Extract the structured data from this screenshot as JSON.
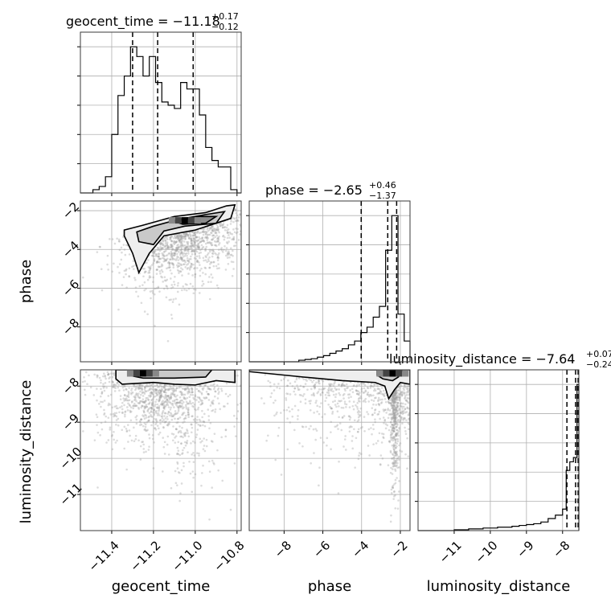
{
  "chart_data": {
    "type": "corner",
    "parameters": [
      "geocent_time",
      "phase",
      "luminosity_distance"
    ],
    "diagonal_titles": [
      {
        "param": "geocent_time",
        "label": "geocent_time = ",
        "median": "−11.18",
        "upper": "+0.17",
        "lower": "−0.12"
      },
      {
        "param": "phase",
        "label": "phase = ",
        "median": "−2.65",
        "upper": "+0.46",
        "lower": "−1.37"
      },
      {
        "param": "luminosity_distance",
        "label": "luminosity_distance = ",
        "median": "−7.64",
        "upper": "+0.07",
        "lower": "−0.24"
      }
    ],
    "axes": {
      "geocent_time": {
        "range": [
          -11.55,
          -10.78
        ],
        "ticks": [
          -11.4,
          -11.2,
          -11.0,
          -10.8
        ],
        "tick_labels": [
          "−11.4",
          "−11.2",
          "−11.0",
          "−10.8"
        ]
      },
      "phase": {
        "range": [
          -9.8,
          -1.5
        ],
        "ticks": [
          -8,
          -6,
          -4,
          -2
        ],
        "tick_labels": [
          "−8",
          "−6",
          "−4",
          "−2"
        ]
      },
      "luminosity_distance": {
        "range": [
          -12.0,
          -7.55
        ],
        "ticks": [
          -11,
          -10,
          -9,
          -8
        ],
        "tick_labels": [
          "−11",
          "−10",
          "−9",
          "−8"
        ]
      }
    },
    "quantiles": {
      "geocent_time": [
        -11.3,
        -11.18,
        -11.01
      ],
      "phase": [
        -4.02,
        -2.65,
        -2.19
      ],
      "luminosity_distance": [
        -7.88,
        -7.64,
        -7.57
      ]
    },
    "hist_geocent_time": {
      "edges": [
        -11.55,
        -11.52,
        -11.49,
        -11.46,
        -11.43,
        -11.4,
        -11.37,
        -11.34,
        -11.31,
        -11.28,
        -11.25,
        -11.22,
        -11.19,
        -11.16,
        -11.13,
        -11.1,
        -11.07,
        -11.04,
        -11.01,
        -10.98,
        -10.95,
        -10.92,
        -10.89,
        -10.86,
        -10.83,
        -10.8,
        -10.78
      ],
      "counts": [
        0,
        0,
        5,
        10,
        25,
        90,
        150,
        180,
        225,
        210,
        180,
        210,
        170,
        140,
        135,
        130,
        170,
        160,
        160,
        120,
        70,
        50,
        40,
        40,
        5,
        0
      ]
    },
    "hist_phase": {
      "edges": [
        -9.8,
        -9.48,
        -9.16,
        -8.84,
        -8.52,
        -8.2,
        -7.88,
        -7.56,
        -7.24,
        -6.92,
        -6.6,
        -6.28,
        -5.96,
        -5.64,
        -5.32,
        -5.0,
        -4.68,
        -4.36,
        -4.04,
        -3.72,
        -3.4,
        -3.08,
        -2.76,
        -2.44,
        -2.12,
        -1.8,
        -1.5
      ],
      "counts": [
        0,
        0,
        0,
        0,
        0,
        0,
        0,
        0,
        2,
        3,
        4,
        6,
        8,
        11,
        14,
        17,
        22,
        27,
        38,
        45,
        58,
        72,
        145,
        190,
        62,
        27
      ]
    },
    "hist_luminosity_distance": {
      "edges": [
        -12.0,
        -11.8,
        -11.6,
        -11.4,
        -11.2,
        -11.0,
        -10.8,
        -10.6,
        -10.4,
        -10.2,
        -10.0,
        -9.8,
        -9.6,
        -9.4,
        -9.2,
        -9.0,
        -8.8,
        -8.6,
        -8.4,
        -8.2,
        -8.0,
        -7.9,
        -7.8,
        -7.7,
        -7.6,
        -7.55
      ],
      "counts": [
        0,
        0,
        0,
        0,
        0,
        1,
        1,
        2,
        2,
        3,
        3,
        4,
        4,
        5,
        6,
        7,
        8,
        10,
        14,
        18,
        25,
        70,
        80,
        85,
        170
      ]
    },
    "scatter_phase_vs_geocent_time": {
      "high_density_center": [
        -11.05,
        -2.5
      ],
      "contour_outer": [
        [
          -11.34,
          -3.0
        ],
        [
          -11.25,
          -2.75
        ],
        [
          -11.1,
          -2.3
        ],
        [
          -10.95,
          -2.1
        ],
        [
          -10.85,
          -1.75
        ],
        [
          -10.81,
          -1.7
        ],
        [
          -10.83,
          -2.4
        ],
        [
          -11.0,
          -3.0
        ],
        [
          -11.15,
          -3.3
        ],
        [
          -11.22,
          -4.2
        ],
        [
          -11.27,
          -5.2
        ],
        [
          -11.3,
          -4.2
        ],
        [
          -11.34,
          -3.3
        ]
      ],
      "contour_inner": [
        [
          -11.28,
          -3.1
        ],
        [
          -11.2,
          -2.8
        ],
        [
          -11.08,
          -2.45
        ],
        [
          -10.95,
          -2.2
        ],
        [
          -10.86,
          -2.05
        ],
        [
          -10.9,
          -2.65
        ],
        [
          -11.05,
          -2.8
        ],
        [
          -11.15,
          -3.05
        ],
        [
          -11.2,
          -3.75
        ],
        [
          -11.27,
          -3.6
        ]
      ],
      "contour_core": [
        [
          -11.1,
          -2.55
        ],
        [
          -10.98,
          -2.3
        ],
        [
          -10.9,
          -2.3
        ],
        [
          -10.95,
          -2.65
        ],
        [
          -11.06,
          -2.7
        ]
      ]
    },
    "scatter_luminosity_distance_vs_geocent_time": {
      "high_density_center": [
        -11.25,
        -7.65
      ],
      "contour_outer": [
        [
          -11.38,
          -7.55
        ],
        [
          -10.81,
          -7.55
        ],
        [
          -10.81,
          -7.9
        ],
        [
          -10.9,
          -7.85
        ],
        [
          -11.0,
          -7.97
        ],
        [
          -11.1,
          -7.95
        ],
        [
          -11.2,
          -7.9
        ],
        [
          -11.35,
          -7.95
        ],
        [
          -11.38,
          -7.8
        ]
      ],
      "contour_inner": [
        [
          -11.32,
          -7.55
        ],
        [
          -10.92,
          -7.55
        ],
        [
          -10.95,
          -7.75
        ],
        [
          -11.1,
          -7.78
        ],
        [
          -11.25,
          -7.78
        ],
        [
          -11.32,
          -7.7
        ]
      ]
    },
    "scatter_luminosity_distance_vs_phase": {
      "high_density_center": [
        -2.4,
        -7.65
      ],
      "contour_outer": [
        [
          -9.8,
          -7.55
        ],
        [
          -1.5,
          -7.55
        ],
        [
          -1.5,
          -7.95
        ],
        [
          -2.0,
          -7.9
        ],
        [
          -2.3,
          -8.1
        ],
        [
          -2.6,
          -8.35
        ],
        [
          -2.8,
          -8.0
        ],
        [
          -3.3,
          -7.9
        ],
        [
          -5.0,
          -7.85
        ],
        [
          -7.0,
          -7.75
        ],
        [
          -9.8,
          -7.6
        ]
      ],
      "contour_inner": [
        [
          -3.2,
          -7.55
        ],
        [
          -1.9,
          -7.55
        ],
        [
          -2.1,
          -7.75
        ],
        [
          -2.4,
          -7.85
        ],
        [
          -2.9,
          -7.8
        ],
        [
          -3.2,
          -7.7
        ]
      ]
    },
    "grid": true
  }
}
